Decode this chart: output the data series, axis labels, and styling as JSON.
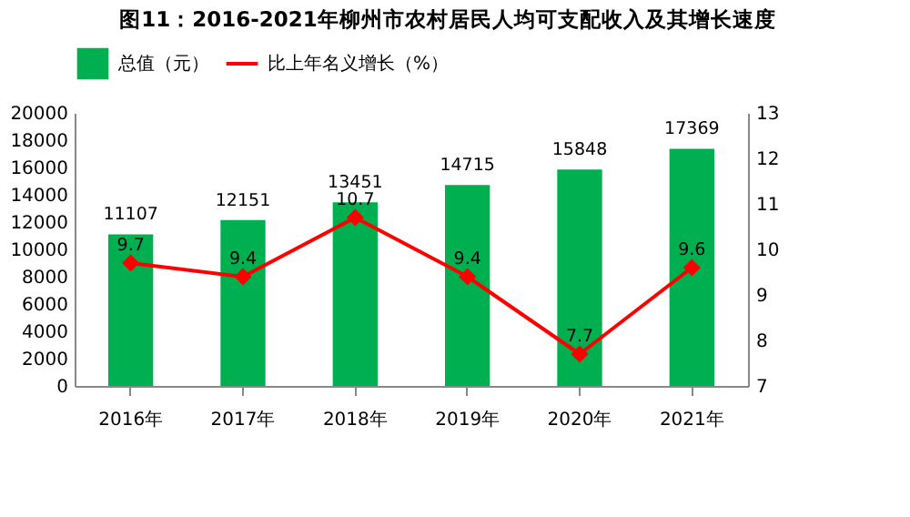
{
  "chart_data": {
    "type": "bar",
    "title": "图11：2016-2021年柳州市农村居民人均可支配收入及其增长速度",
    "categories": [
      "2016年",
      "2017年",
      "2018年",
      "2019年",
      "2020年",
      "2021年"
    ],
    "series": [
      {
        "name": "总值（元）",
        "type": "bar",
        "color": "#00b050",
        "values": [
          11107,
          12151,
          13451,
          14715,
          15848,
          17369
        ]
      },
      {
        "name": "比上年名义增长（%）",
        "type": "line",
        "axis": "y2",
        "color": "#ff0000",
        "values": [
          9.7,
          9.4,
          10.7,
          9.4,
          7.7,
          9.6
        ]
      }
    ],
    "ylim": [
      0,
      20000
    ],
    "yticks": [
      0,
      2000,
      4000,
      6000,
      8000,
      10000,
      12000,
      14000,
      16000,
      18000,
      20000
    ],
    "y2lim": [
      7,
      13
    ],
    "y2ticks": [
      7,
      8,
      9,
      10,
      11,
      12,
      13
    ],
    "data_labels": true,
    "legend": "top",
    "grid": false,
    "marker": "diamond",
    "line_style": "solid"
  }
}
